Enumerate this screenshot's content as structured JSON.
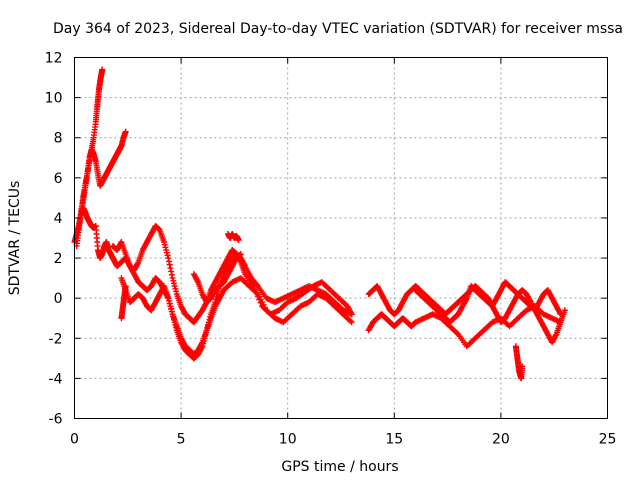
{
  "chart_data": {
    "type": "scatter",
    "title": "Day 364 of 2023, Sidereal Day-to-day VTEC variation (SDTVAR) for receiver mssa",
    "xlabel": "GPS time / hours",
    "ylabel": "SDTVAR / TECUs",
    "xlim": [
      0,
      25
    ],
    "ylim": [
      -6,
      12
    ],
    "x_ticks": [
      0,
      5,
      10,
      15,
      20,
      25
    ],
    "x_tick_labels": [
      "0",
      "5",
      "10",
      "15",
      "20",
      "25"
    ],
    "y_ticks": [
      -6,
      -4,
      -2,
      0,
      2,
      4,
      6,
      8,
      10,
      12
    ],
    "y_tick_labels": [
      "-6",
      "-4",
      "-2",
      "0",
      "2",
      "4",
      "6",
      "8",
      "10",
      "12"
    ],
    "grid": true,
    "marker": "+",
    "color": "#ff0000",
    "series": [
      {
        "name": "s1",
        "x": [
          0.0,
          0.1,
          0.2,
          0.3,
          0.4,
          0.5,
          0.6,
          0.7,
          0.8,
          0.9,
          1.0,
          1.1,
          1.2,
          1.3,
          1.4,
          1.5,
          1.6,
          1.7,
          1.8,
          1.9,
          2.0,
          2.1,
          2.2,
          2.3,
          2.4
        ],
        "y": [
          2.8,
          3.2,
          3.6,
          4.2,
          4.8,
          5.5,
          6.2,
          7.0,
          7.4,
          7.2,
          6.8,
          6.2,
          5.6,
          5.8,
          6.0,
          6.2,
          6.4,
          6.6,
          6.8,
          7.0,
          7.2,
          7.4,
          7.6,
          8.0,
          8.3
        ]
      },
      {
        "name": "s2",
        "x": [
          0.2,
          0.3,
          0.4,
          0.5,
          0.6,
          0.7,
          0.8,
          0.9,
          1.0,
          1.05,
          1.1,
          1.15,
          1.2,
          1.25,
          1.3
        ],
        "y": [
          3.6,
          4.2,
          5.0,
          5.6,
          6.2,
          6.8,
          7.4,
          8.0,
          8.8,
          9.4,
          9.9,
          10.4,
          10.8,
          11.1,
          11.4
        ]
      },
      {
        "name": "s3",
        "x": [
          0.1,
          0.2,
          0.3,
          0.4,
          0.5,
          0.6,
          0.7,
          0.8,
          0.9,
          1.0,
          1.1,
          1.2,
          1.3,
          1.4,
          1.5,
          1.6,
          1.7,
          1.8,
          1.9,
          2.0,
          2.2,
          2.4,
          2.6,
          2.8,
          3.0,
          3.2,
          3.4,
          3.6,
          3.8,
          4.0,
          4.2,
          4.4,
          4.6,
          4.8,
          5.0,
          5.2,
          5.4,
          5.6,
          5.8,
          6.0,
          6.2,
          6.4,
          6.6,
          6.8,
          7.0,
          7.2,
          7.4,
          7.6,
          7.8,
          8.0,
          8.3,
          8.6,
          9.0,
          9.4,
          9.8,
          10.2,
          10.6,
          11.0,
          11.4,
          11.8,
          12.2,
          12.6,
          13.0
        ],
        "y": [
          2.6,
          3.4,
          4.1,
          4.5,
          4.3,
          4.0,
          3.8,
          3.6,
          3.5,
          3.6,
          2.4,
          2.0,
          2.2,
          2.6,
          2.8,
          2.4,
          2.2,
          2.0,
          1.8,
          1.6,
          1.8,
          2.0,
          1.6,
          1.2,
          0.8,
          0.6,
          0.4,
          0.6,
          1.0,
          0.8,
          0.4,
          0.0,
          -0.8,
          -1.6,
          -2.2,
          -2.6,
          -2.8,
          -3.0,
          -2.8,
          -2.4,
          -1.6,
          -0.8,
          -0.2,
          0.6,
          1.2,
          1.6,
          2.0,
          2.2,
          2.0,
          1.6,
          1.0,
          0.6,
          0.0,
          -0.2,
          0.0,
          0.2,
          0.4,
          0.6,
          0.4,
          0.2,
          -0.2,
          -0.6,
          -0.8
        ]
      },
      {
        "name": "s4",
        "x": [
          1.8,
          2.0,
          2.2,
          2.4,
          2.6,
          2.8,
          3.0,
          3.2,
          3.4,
          3.6,
          3.8,
          4.0,
          4.2,
          4.4,
          4.6,
          4.8,
          5.0,
          5.2,
          5.4,
          5.6,
          5.8,
          6.0,
          6.2,
          6.4,
          6.6,
          6.8,
          7.0,
          7.2,
          7.4,
          7.6,
          7.8,
          8.0,
          8.4,
          8.8,
          9.2,
          9.6,
          10.0,
          10.4,
          10.8,
          11.2,
          11.6,
          12.0,
          12.4,
          12.8,
          13.0
        ],
        "y": [
          2.6,
          2.4,
          2.8,
          2.2,
          1.6,
          1.4,
          1.8,
          2.4,
          2.8,
          3.2,
          3.6,
          3.4,
          2.8,
          2.0,
          1.0,
          0.2,
          -0.4,
          -0.8,
          -1.0,
          -1.2,
          -0.9,
          -0.6,
          -0.2,
          0.4,
          0.8,
          1.2,
          1.6,
          2.0,
          2.4,
          2.2,
          1.8,
          1.2,
          0.6,
          -0.4,
          -0.8,
          -0.6,
          -0.2,
          0.0,
          0.3,
          0.6,
          0.8,
          0.4,
          0.0,
          -0.4,
          -0.8
        ]
      },
      {
        "name": "s5",
        "x": [
          2.2,
          2.4,
          2.6,
          2.8,
          3.0,
          3.2,
          3.4,
          3.6,
          3.8,
          4.0,
          4.2,
          4.4,
          4.6,
          4.8,
          5.0,
          5.2,
          5.4,
          5.6,
          5.8,
          6.0,
          6.2,
          6.4,
          6.6,
          6.8,
          7.0,
          7.4,
          7.8,
          8.2,
          8.6,
          9.0,
          9.4,
          9.8,
          10.2,
          10.6,
          11.0,
          11.4,
          11.8,
          12.2,
          12.6,
          13.0
        ],
        "y": [
          1.0,
          0.4,
          -0.2,
          0.0,
          0.2,
          0.0,
          -0.4,
          -0.6,
          -0.2,
          0.2,
          0.6,
          0.0,
          -0.8,
          -1.4,
          -2.0,
          -2.4,
          -2.6,
          -2.8,
          -2.6,
          -2.2,
          -1.6,
          -1.0,
          -0.4,
          0.0,
          0.4,
          0.8,
          1.0,
          0.6,
          0.2,
          -0.6,
          -1.0,
          -1.2,
          -0.8,
          -0.4,
          -0.2,
          0.2,
          0.0,
          -0.4,
          -0.8,
          -1.2
        ]
      },
      {
        "name": "s6",
        "x": [
          5.6,
          5.8,
          6.0,
          6.2,
          6.4,
          6.6,
          6.8,
          7.0,
          7.2,
          7.4,
          7.6,
          7.8
        ],
        "y": [
          1.2,
          0.8,
          0.2,
          -0.2,
          0.0,
          0.4,
          0.6,
          0.8,
          1.2,
          1.6,
          2.0,
          2.2
        ]
      },
      {
        "name": "s7",
        "x": [
          7.2,
          7.3,
          7.4,
          7.5,
          7.6,
          7.7
        ],
        "y": [
          3.2,
          3.0,
          3.2,
          3.0,
          3.1,
          2.9
        ]
      },
      {
        "name": "s8",
        "x": [
          2.2,
          2.25,
          2.3,
          2.35,
          2.4
        ],
        "y": [
          -1.0,
          -0.6,
          -0.2,
          0.2,
          0.6
        ]
      },
      {
        "name": "s9",
        "x": [
          13.8,
          14.0,
          14.2,
          14.4,
          14.6,
          14.8,
          15.0,
          15.2,
          15.4,
          15.6,
          15.8,
          16.0,
          16.2,
          16.4,
          16.6,
          16.8,
          17.0,
          17.2,
          17.4,
          17.6,
          17.8,
          18.0,
          18.2,
          18.4,
          18.6,
          18.8,
          19.0,
          19.2,
          19.4,
          19.6,
          19.8,
          20.0,
          20.2,
          20.4,
          20.6,
          20.8,
          21.0,
          21.2,
          21.4,
          21.6,
          21.8,
          22.0,
          22.2,
          22.4,
          22.6,
          22.8,
          23.0
        ],
        "y": [
          0.2,
          0.4,
          0.6,
          0.2,
          -0.2,
          -0.6,
          -0.8,
          -0.6,
          -0.2,
          0.2,
          0.4,
          0.6,
          0.4,
          0.2,
          0.0,
          -0.2,
          -0.4,
          -0.6,
          -0.8,
          -0.6,
          -0.4,
          -0.2,
          0.0,
          0.2,
          0.4,
          0.6,
          0.4,
          0.2,
          0.0,
          -0.4,
          -0.8,
          -1.2,
          -1.0,
          -0.6,
          -0.2,
          0.2,
          0.4,
          0.2,
          -0.2,
          -0.6,
          -1.0,
          -1.4,
          -1.8,
          -2.2,
          -1.8,
          -1.2,
          -0.6
        ]
      },
      {
        "name": "s10",
        "x": [
          13.8,
          14.0,
          14.2,
          14.4,
          14.6,
          14.8,
          15.0,
          15.2,
          15.4,
          15.6,
          15.8,
          16.0,
          16.4,
          16.8,
          17.2,
          17.6,
          18.0,
          18.4,
          18.8,
          19.2,
          19.6,
          20.0,
          20.4,
          20.8,
          21.2,
          21.6,
          22.0,
          22.4,
          22.8
        ],
        "y": [
          -1.6,
          -1.2,
          -1.0,
          -0.8,
          -1.0,
          -1.2,
          -1.4,
          -1.2,
          -1.0,
          -1.2,
          -1.4,
          -1.2,
          -1.0,
          -0.8,
          -1.0,
          -1.4,
          -1.8,
          -2.4,
          -2.0,
          -1.6,
          -1.2,
          -1.0,
          -1.4,
          -1.0,
          -0.6,
          -0.4,
          -0.8,
          -1.0,
          -1.2
        ]
      },
      {
        "name": "s11",
        "x": [
          16.0,
          16.2,
          16.4,
          16.6,
          16.8,
          17.0,
          17.2,
          17.4,
          17.6,
          17.8,
          18.0,
          18.2,
          18.4,
          18.6,
          18.8,
          19.0,
          19.2,
          19.4,
          19.6,
          19.8,
          20.0,
          20.2,
          20.4,
          20.6,
          20.8,
          21.0,
          21.2,
          21.4,
          21.6,
          21.8,
          22.0,
          22.2,
          22.4,
          22.6,
          22.8
        ],
        "y": [
          0.4,
          0.2,
          0.0,
          -0.2,
          -0.4,
          -0.6,
          -0.8,
          -1.0,
          -1.2,
          -1.0,
          -0.8,
          -0.4,
          0.0,
          0.6,
          0.4,
          0.2,
          0.0,
          -0.2,
          -0.4,
          0.0,
          0.4,
          0.8,
          0.6,
          0.4,
          0.2,
          0.0,
          -0.2,
          -0.4,
          -0.6,
          -0.2,
          0.2,
          0.4,
          0.0,
          -0.4,
          -0.8
        ]
      },
      {
        "name": "s12",
        "x": [
          20.7,
          20.75,
          20.8,
          20.85,
          20.9,
          20.95,
          21.0
        ],
        "y": [
          -2.4,
          -2.8,
          -3.2,
          -3.6,
          -3.8,
          -4.0,
          -3.4
        ]
      }
    ]
  }
}
